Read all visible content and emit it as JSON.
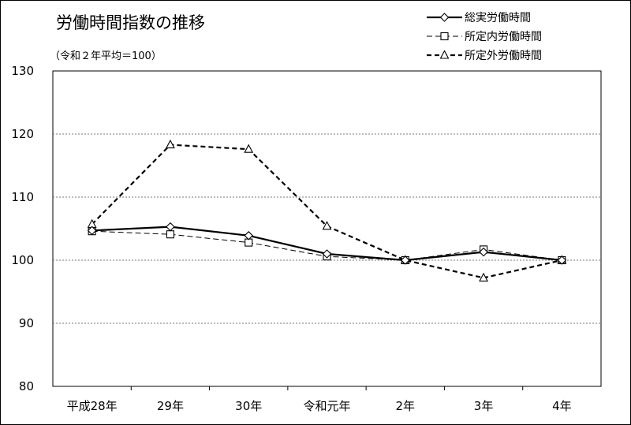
{
  "chart_data": {
    "type": "line",
    "title": "労働時間指数の推移",
    "subtitle": "（令和２年平均＝100）",
    "categories": [
      "平成28年",
      "29年",
      "30年",
      "令和元年",
      "2年",
      "3年",
      "4年"
    ],
    "ylim": [
      80,
      130
    ],
    "yticks": [
      80,
      90,
      100,
      110,
      120,
      130
    ],
    "grid": true,
    "legend_position": "top-right",
    "series": [
      {
        "name": "総実労働時間",
        "marker": "diamond",
        "line_style": "solid-thick",
        "color": "#000000",
        "values": [
          104.7,
          105.3,
          103.9,
          101.0,
          100.0,
          101.3,
          100.0
        ]
      },
      {
        "name": "所定内労働時間",
        "marker": "square",
        "line_style": "dashed-thin",
        "color": "#000000",
        "values": [
          104.6,
          104.1,
          102.8,
          100.6,
          100.0,
          101.7,
          100.0
        ]
      },
      {
        "name": "所定外労働時間",
        "marker": "triangle",
        "line_style": "dashed-thick",
        "color": "#000000",
        "values": [
          105.7,
          118.3,
          117.6,
          105.4,
          100.0,
          97.2,
          100.0
        ]
      }
    ]
  }
}
